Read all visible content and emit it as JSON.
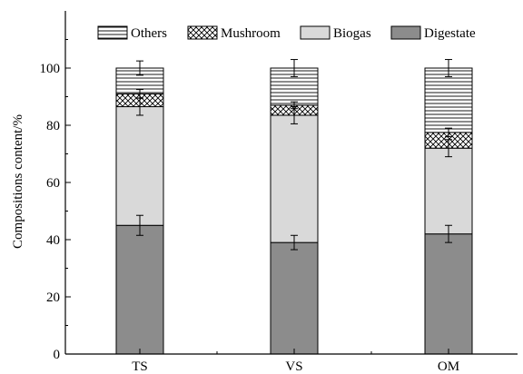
{
  "chart_data": {
    "type": "bar",
    "stacked": true,
    "categories": [
      "TS",
      "VS",
      "OM"
    ],
    "ylabel": "Compositions content/%",
    "xlabel": "",
    "ylim": [
      0,
      120
    ],
    "yticks": [
      0,
      20,
      40,
      60,
      80,
      100
    ],
    "legend_position": "top",
    "series": [
      {
        "name": "Digestate",
        "values": [
          45,
          39,
          42
        ],
        "errors": [
          3.5,
          2.5,
          3
        ],
        "fill": "#8c8c8c",
        "pattern": "solid"
      },
      {
        "name": "Biogas",
        "values": [
          41.5,
          44.5,
          30
        ],
        "errors": [
          3,
          3,
          3
        ],
        "fill": "#d9d9d9",
        "pattern": "solid"
      },
      {
        "name": "Mushroom",
        "values": [
          4.5,
          3.5,
          5.5
        ],
        "errors": [
          1.5,
          1.2,
          1.5
        ],
        "fill": "#ffffff",
        "pattern": "crosshatch"
      },
      {
        "name": "Others",
        "values": [
          9,
          13,
          22.5
        ],
        "errors": [
          2.5,
          3,
          3
        ],
        "fill": "#ffffff",
        "pattern": "horizontal"
      }
    ],
    "legend_order": [
      "Others",
      "Mushroom",
      "Biogas",
      "Digestate"
    ]
  }
}
